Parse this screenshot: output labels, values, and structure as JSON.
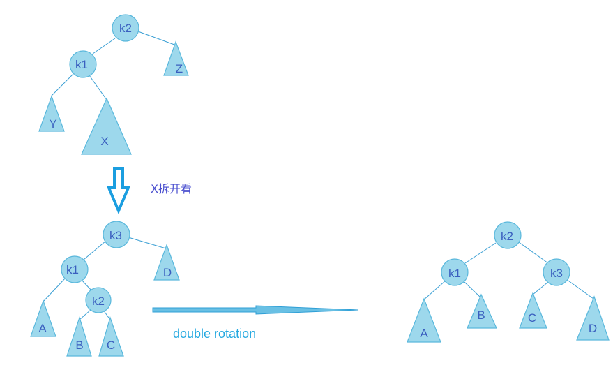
{
  "diagram": {
    "top_tree": {
      "root": "k2",
      "left": "k1",
      "right_subtree": "Z",
      "left_left_subtree": "Y",
      "left_right_subtree": "X"
    },
    "step_caption": "X拆开看",
    "middle_tree": {
      "root": "k3",
      "left": "k1",
      "right_subtree": "D",
      "left_left_subtree": "A",
      "left_right": "k2",
      "k2_left_subtree": "B",
      "k2_right_subtree": "C"
    },
    "operation_label": "double rotation",
    "result_tree": {
      "root": "k2",
      "left": "k1",
      "right": "k3",
      "k1_left_subtree": "A",
      "k1_right_subtree": "B",
      "k3_left_subtree": "C",
      "k3_right_subtree": "D"
    }
  },
  "colors": {
    "node_fill": "#9dd8ec",
    "node_stroke": "#5ab8dc",
    "edge": "#3a9fd4",
    "label": "#3a5fbf",
    "caption_blue": "#4a4fcf",
    "caption_cyan": "#23a8e0"
  }
}
